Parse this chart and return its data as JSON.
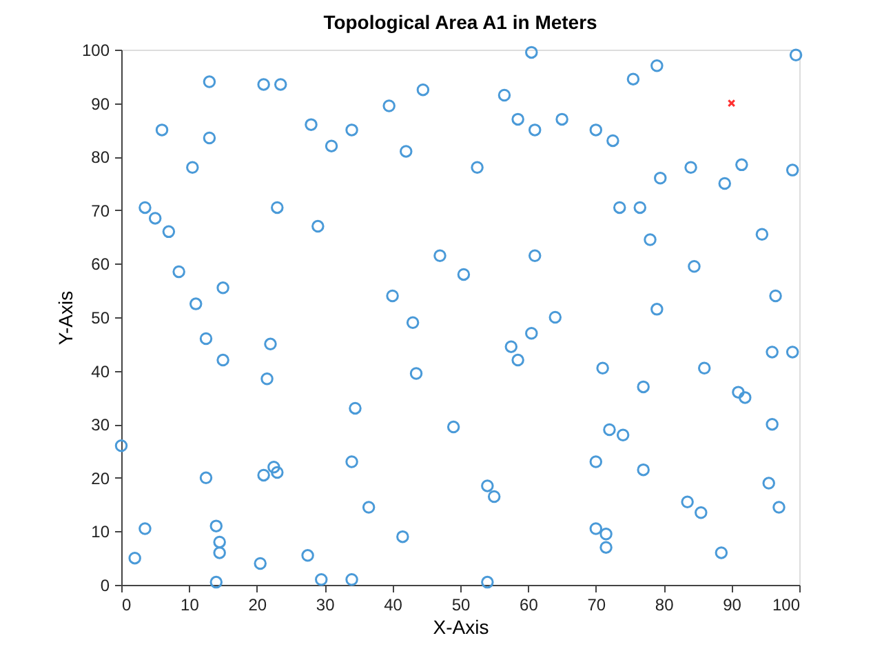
{
  "chart_data": {
    "type": "scatter",
    "title": "Topological Area A1 in Meters",
    "xlabel": "X-Axis",
    "ylabel": "Y-Axis",
    "xlim": [
      0,
      100
    ],
    "ylim": [
      0,
      100
    ],
    "xticks": [
      0,
      10,
      20,
      30,
      40,
      50,
      60,
      70,
      80,
      90,
      100
    ],
    "yticks": [
      0,
      10,
      20,
      30,
      40,
      50,
      60,
      70,
      80,
      90,
      100
    ],
    "grid": false,
    "legend": false,
    "series": [
      {
        "color": "#4a9ad8",
        "marker": "circle",
        "x": [
          0,
          2,
          3.5,
          3.5,
          5,
          6,
          7,
          8.5,
          10.5,
          11,
          12.5,
          12.5,
          13,
          13,
          14,
          14,
          14.5,
          14.5,
          15,
          15,
          20.5,
          21,
          21,
          21.5,
          22,
          22.5,
          23,
          23.5,
          23,
          27.5,
          28,
          29,
          29.5,
          31,
          34,
          34,
          34,
          34.5,
          36.5,
          39.5,
          40,
          41.5,
          42,
          43,
          43.5,
          44.5,
          47,
          49,
          50.5,
          52.5,
          54,
          54,
          55,
          56.5,
          57.5,
          58.5,
          58.5,
          60.5,
          60.5,
          61,
          61,
          64,
          65,
          70,
          70,
          70,
          71,
          71.5,
          71.5,
          72,
          72.5,
          73.5,
          74,
          75.5,
          76.5,
          77,
          77,
          78,
          79,
          79,
          79.5,
          83.5,
          84,
          84.5,
          85.5,
          86,
          88.5,
          89,
          91,
          91.5,
          92,
          94.5,
          95.5,
          96,
          96,
          96.5,
          97,
          99,
          99,
          99.5
        ],
        "values": [
          26,
          5,
          10.5,
          70.5,
          68.5,
          85,
          66,
          58.5,
          78,
          52.5,
          20,
          46,
          94,
          83.5,
          11,
          0.5,
          8,
          6,
          55.5,
          42,
          4,
          93.5,
          20.5,
          38.5,
          45,
          22,
          21,
          93.5,
          70.5,
          5.5,
          86,
          67,
          1,
          82,
          1,
          23,
          85,
          33,
          14.5,
          89.5,
          54,
          9,
          81,
          49,
          39.5,
          92.5,
          61.5,
          29.5,
          58,
          78,
          18.5,
          0.5,
          16.5,
          91.5,
          44.5,
          42,
          87,
          47,
          99.5,
          61.5,
          85,
          50,
          87,
          10.5,
          23,
          85,
          40.5,
          7,
          9.5,
          29,
          83,
          70.5,
          28,
          94.5,
          70.5,
          37,
          21.5,
          64.5,
          51.5,
          97,
          76,
          15.5,
          78,
          59.5,
          13.5,
          40.5,
          6,
          75,
          36,
          78.5,
          35,
          65.5,
          19,
          43.5,
          30,
          54,
          14.5,
          43.5,
          77.5,
          99
        ]
      },
      {
        "color": "#ff3030",
        "marker": "cross",
        "x": [
          90
        ],
        "values": [
          90
        ]
      }
    ]
  }
}
